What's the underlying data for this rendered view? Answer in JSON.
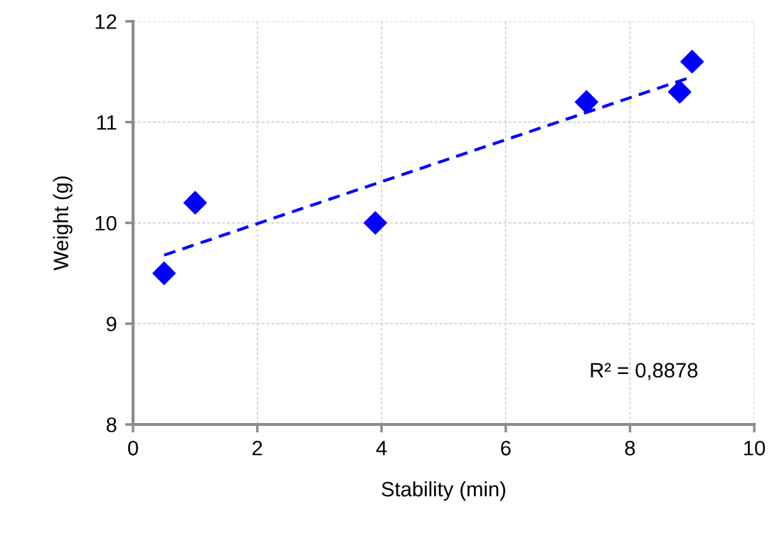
{
  "chart_data": {
    "type": "scatter",
    "xlabel": "Stability (min)",
    "ylabel": "Weight (g)",
    "xlim": [
      0,
      10
    ],
    "ylim": [
      8,
      12
    ],
    "xticks": [
      0,
      2,
      4,
      6,
      8,
      10
    ],
    "yticks": [
      8,
      9,
      10,
      11,
      12
    ],
    "grid": true,
    "marker": "diamond",
    "legend": false,
    "annotations": [
      "R² = 0,8878"
    ],
    "series": [
      {
        "color": "#0000ff",
        "x": [
          0.5,
          1,
          3.9,
          7.3,
          8.8,
          9
        ],
        "values": [
          9.5,
          10.2,
          10.0,
          11.2,
          11.3,
          11.6
        ]
      },
      {
        "type": "line",
        "color": "#0000ff",
        "line_style": "dashed",
        "marker": "none",
        "x": [
          0.5,
          9
        ],
        "values": [
          9.68,
          11.45
        ]
      }
    ]
  }
}
